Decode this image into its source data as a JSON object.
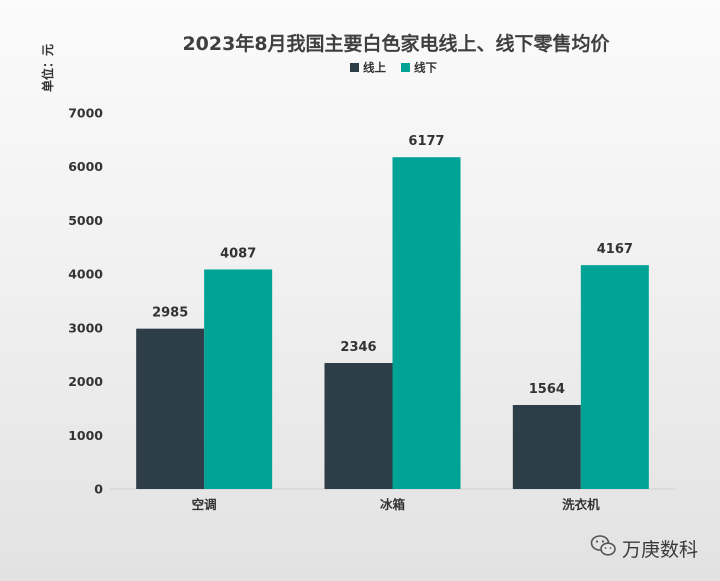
{
  "chart_data": {
    "type": "bar",
    "title": "2023年8月我国主要白色家电线上、线下零售均价",
    "ylabel": "单位：元",
    "xlabel": "",
    "categories": [
      "空调",
      "冰箱",
      "洗衣机"
    ],
    "series": [
      {
        "name": "线上",
        "color": "#2d3e48",
        "values": [
          2985,
          2346,
          1564
        ]
      },
      {
        "name": "线下",
        "color": "#00a396",
        "values": [
          4087,
          6177,
          4167
        ]
      }
    ],
    "ylim": [
      0,
      7000
    ],
    "yticks": [
      0,
      1000,
      2000,
      3000,
      4000,
      5000,
      6000,
      7000
    ],
    "grid": false,
    "legend": "top-center",
    "data_labels": true
  },
  "watermark": {
    "text": "万庚数科",
    "icon": "wechat-icon"
  }
}
